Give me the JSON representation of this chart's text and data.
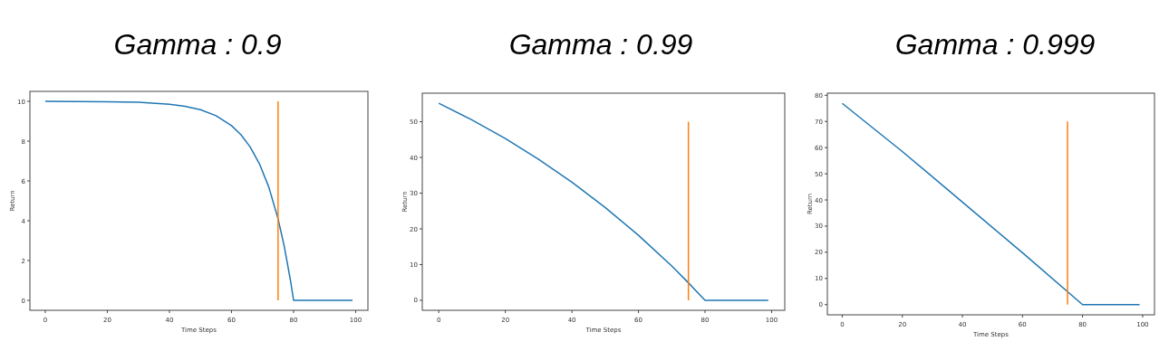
{
  "chart_data": [
    {
      "type": "line",
      "title": "Gamma : 0.9",
      "xlabel": "Time Steps",
      "ylabel": "Return",
      "xlim": [
        -4.95,
        103.95
      ],
      "ylim": [
        -0.5,
        10.5
      ],
      "xticks": [
        0,
        20,
        40,
        60,
        80,
        100
      ],
      "yticks": [
        0,
        2,
        4,
        6,
        8,
        10
      ],
      "series": [
        {
          "color": "#1f77b4",
          "x": [
            0,
            10,
            20,
            30,
            40,
            45,
            50,
            55,
            60,
            63,
            66,
            69,
            72,
            75,
            77,
            79,
            80,
            99
          ],
          "values": [
            10,
            9.99,
            9.98,
            9.95,
            9.85,
            9.75,
            9.58,
            9.28,
            8.78,
            8.33,
            7.71,
            6.86,
            5.7,
            4.1,
            2.71,
            1.0,
            0,
            0
          ]
        },
        {
          "color": "#ff7f0e",
          "x": [
            75,
            75
          ],
          "values": [
            0,
            10
          ]
        }
      ]
    },
    {
      "type": "line",
      "title": "Gamma : 0.99",
      "xlabel": "Time Steps",
      "ylabel": "Return",
      "xlim": [
        -4.95,
        103.95
      ],
      "ylim": [
        -2.8,
        58
      ],
      "xticks": [
        0,
        20,
        40,
        60,
        80,
        100
      ],
      "yticks": [
        0,
        10,
        20,
        30,
        40,
        50
      ],
      "series": [
        {
          "color": "#1f77b4",
          "x": [
            0,
            10,
            20,
            30,
            40,
            50,
            60,
            70,
            75,
            80,
            99
          ],
          "values": [
            55.2,
            50.5,
            45.3,
            39.5,
            33.1,
            26.0,
            18.2,
            9.6,
            4.9,
            0,
            0
          ]
        },
        {
          "color": "#ff7f0e",
          "x": [
            75,
            75
          ],
          "values": [
            0,
            50
          ]
        }
      ]
    },
    {
      "type": "line",
      "title": "Gamma : 0.999",
      "xlabel": "Time Steps",
      "ylabel": "Return",
      "xlim": [
        -4.95,
        103.95
      ],
      "ylim": [
        -3.9,
        80.8
      ],
      "xticks": [
        0,
        20,
        40,
        60,
        80,
        100
      ],
      "yticks": [
        0,
        10,
        20,
        30,
        40,
        50,
        60,
        70,
        80
      ],
      "series": [
        {
          "color": "#1f77b4",
          "x": [
            0,
            20,
            40,
            60,
            80,
            99
          ],
          "values": [
            76.9,
            58.5,
            39.2,
            19.8,
            0,
            0
          ]
        },
        {
          "color": "#ff7f0e",
          "x": [
            75,
            75
          ],
          "values": [
            0,
            70
          ]
        }
      ]
    }
  ]
}
